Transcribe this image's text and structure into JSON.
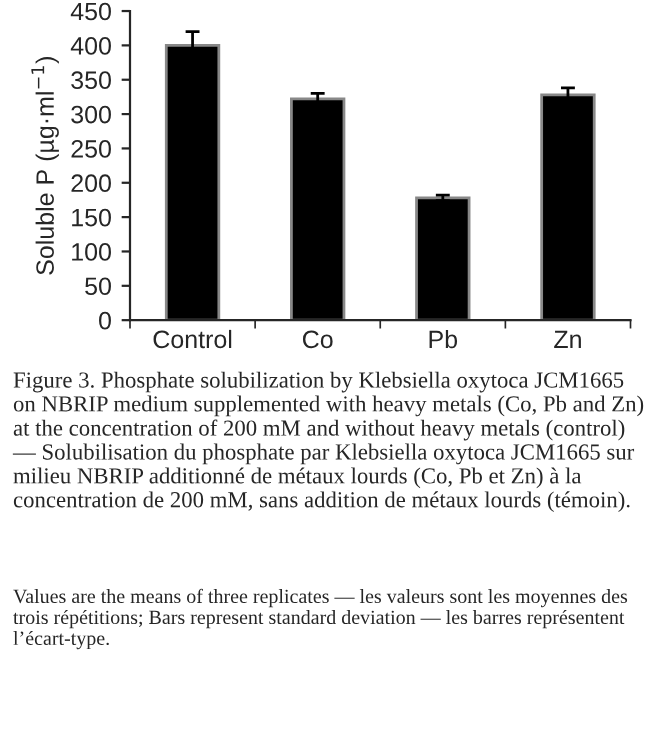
{
  "chart_data": {
    "type": "bar",
    "categories": [
      "Control",
      "Co",
      "Pb",
      "Zn"
    ],
    "values": [
      400,
      322,
      178,
      328
    ],
    "errors": [
      20,
      8,
      4,
      10
    ],
    "color": "#000000",
    "ylabel": "Soluble P (µg·ml$^{−1}$)",
    "ylim": [
      0,
      450
    ],
    "yticks": [
      0,
      50,
      100,
      150,
      200,
      250,
      300,
      350,
      400,
      450
    ],
    "grid": false,
    "annotations": [
      "Figure 3. Phosphate solubilization by Klebsiella oxytoca JCM1665 on NBRIP medium supplemented with heavy metals (Co, Pb and Zn) at the concentration of 200 mM and without heavy metals (control) — Solubilisation du phosphate par Klebsiella oxytoca JCM1665 sur milieu NBRIP additionné de métaux lourds (Co, Pb et Zn) à la concentration de 200 mM, sans addition de métaux lourds (témoin).",
      "Values are the means of three replicates — les valeurs sont les moyennes des trois répétitions; Bars represent standard deviation — les barres représentent l’écart-type."
    ]
  }
}
